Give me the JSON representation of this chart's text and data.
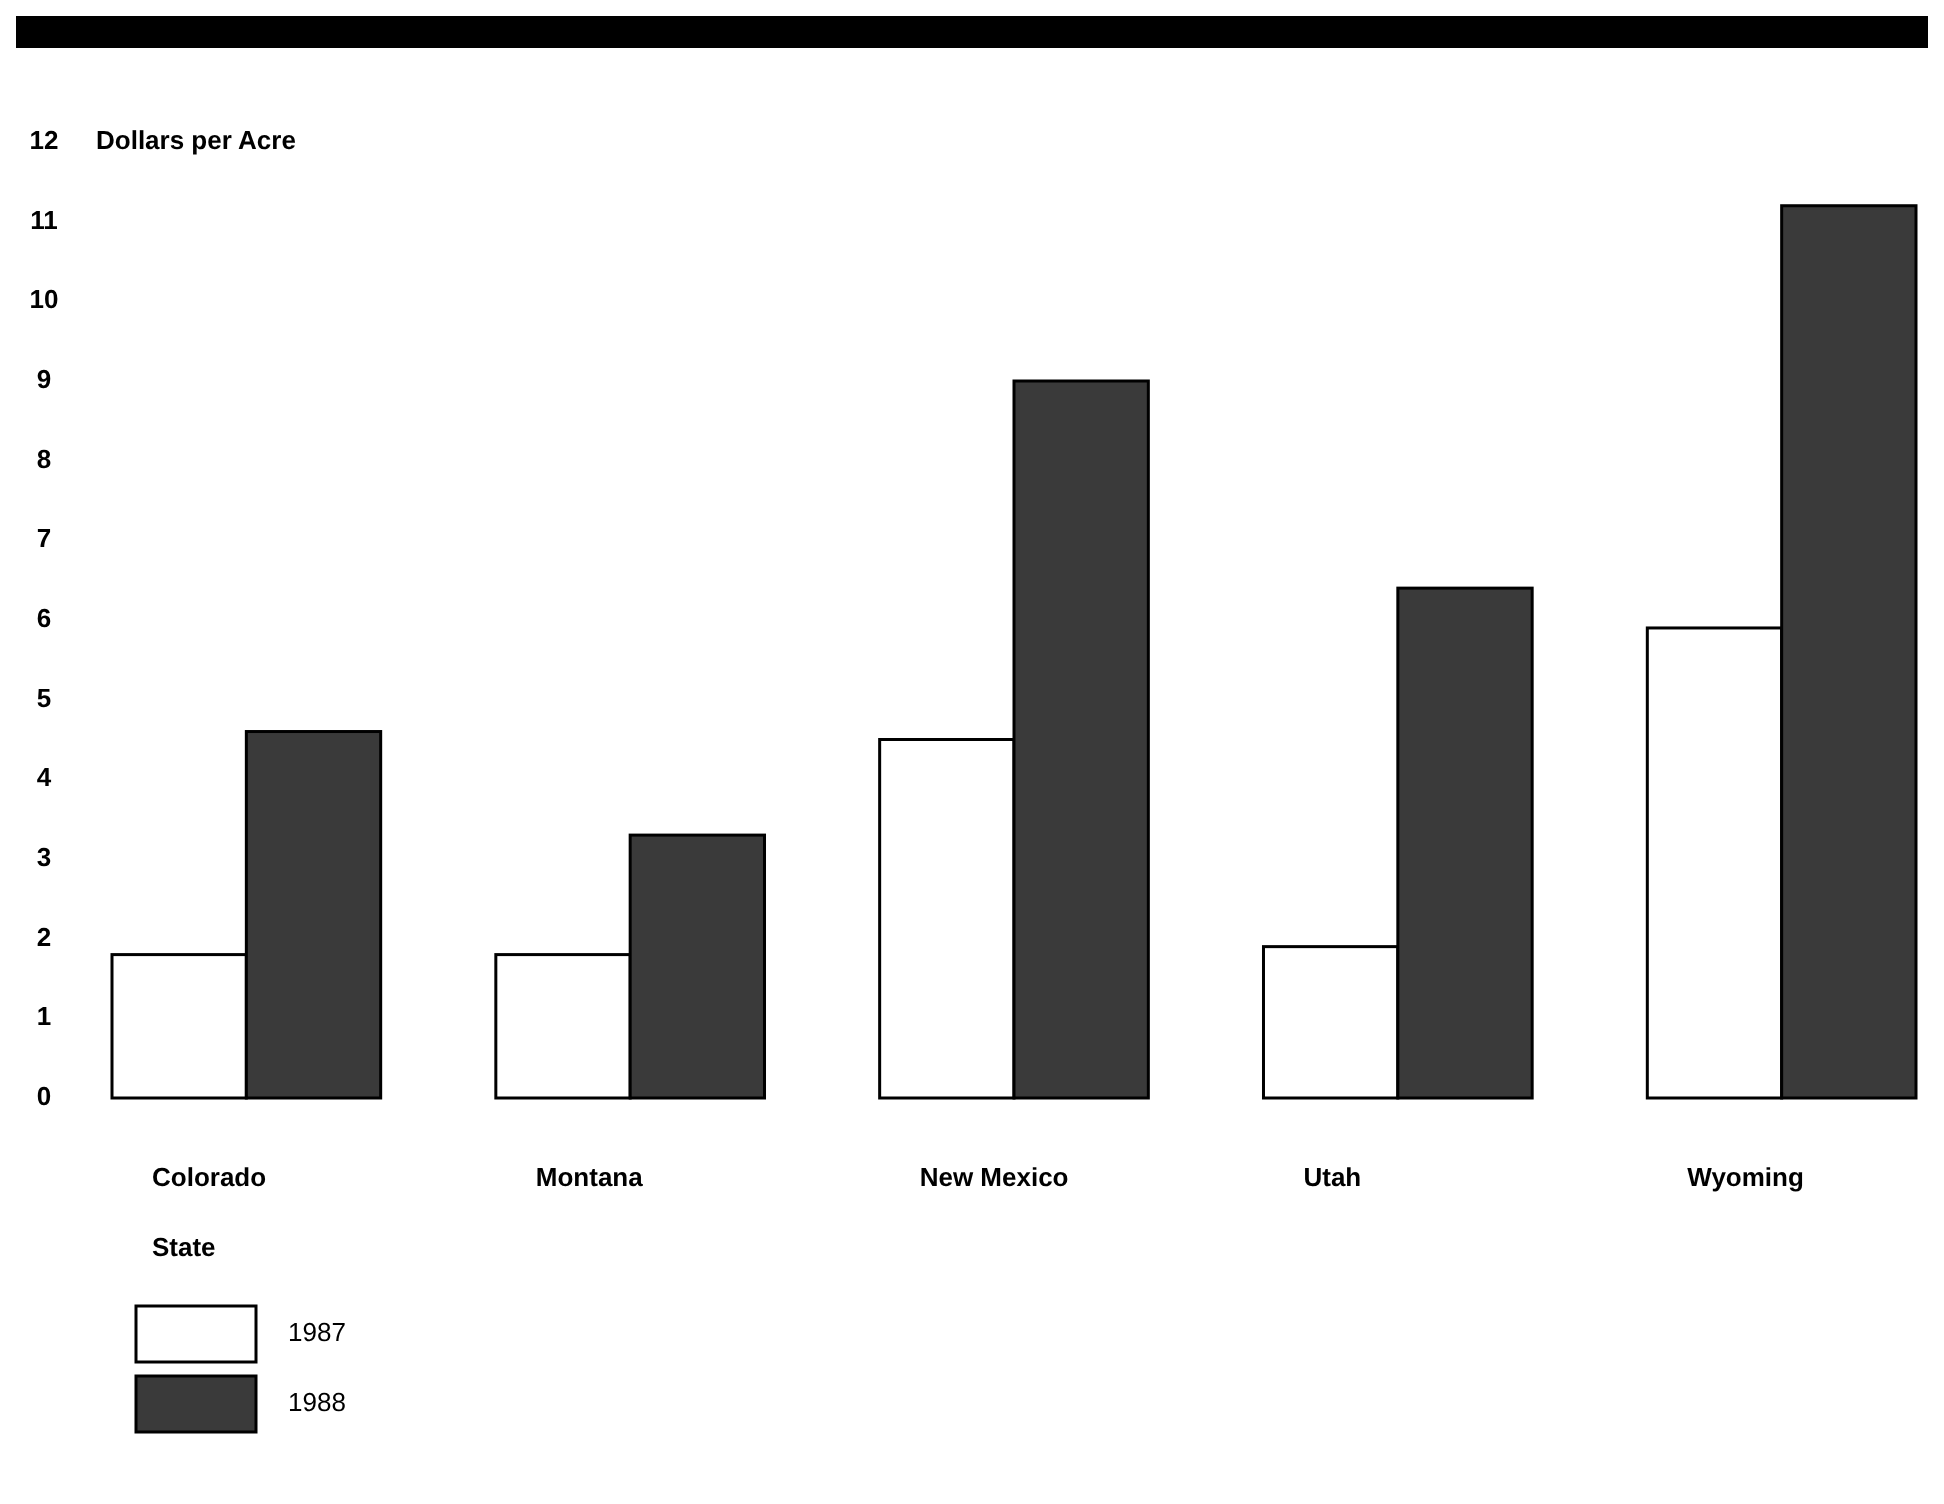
{
  "chart_data": {
    "type": "bar",
    "ylabel": "Dollars per Acre",
    "xlabel": "State",
    "categories": [
      "Colorado",
      "Montana",
      "New Mexico",
      "Utah",
      "Wyoming"
    ],
    "series": [
      {
        "name": "1987",
        "color": "#ffffff",
        "values": [
          1.8,
          1.8,
          4.5,
          1.9,
          5.9
        ]
      },
      {
        "name": "1988",
        "color": "#3a3a3a",
        "values": [
          4.6,
          3.3,
          9.0,
          6.4,
          11.2
        ]
      }
    ],
    "ylim": [
      0,
      12
    ],
    "yticks": [
      0,
      1,
      2,
      3,
      4,
      5,
      6,
      7,
      8,
      9,
      10,
      11,
      12
    ],
    "grid": false,
    "legend": "bottom left"
  }
}
